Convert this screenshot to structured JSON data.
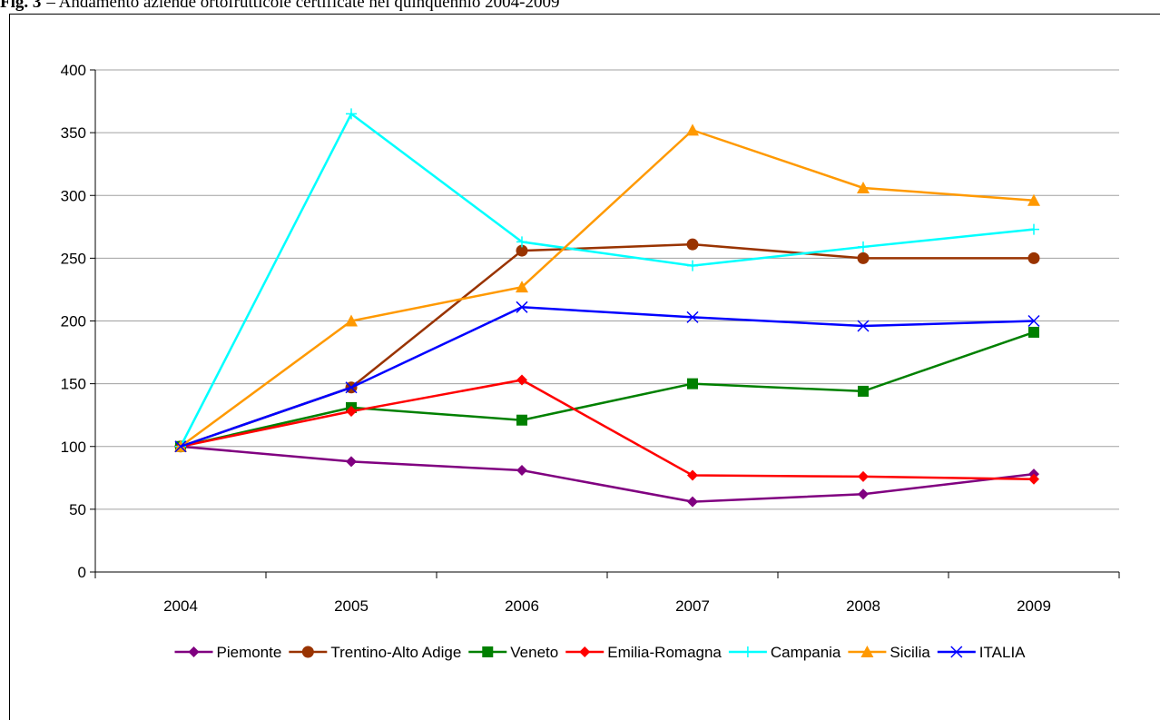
{
  "chart_data": {
    "type": "line",
    "figure_label": "Fig. 3",
    "title": "– Andamento aziende ortofrutticole certificate nel quinquennio 2004-2009",
    "categories": [
      "2004",
      "2005",
      "2006",
      "2007",
      "2008",
      "2009"
    ],
    "series": [
      {
        "name": "Piemonte",
        "color": "#800080",
        "marker": "diamond",
        "values": [
          100,
          88,
          81,
          56,
          62,
          78
        ]
      },
      {
        "name": "Trentino-Alto Adige",
        "color": "#993300",
        "marker": "circle",
        "values": [
          100,
          147,
          256,
          261,
          250,
          250
        ]
      },
      {
        "name": "Veneto",
        "color": "#008000",
        "marker": "square",
        "values": [
          100,
          131,
          121,
          150,
          144,
          191
        ]
      },
      {
        "name": "Emilia-Romagna",
        "color": "#ff0000",
        "marker": "diamond",
        "values": [
          100,
          128,
          153,
          77,
          76,
          74
        ]
      },
      {
        "name": "Campania",
        "color": "#00ffff",
        "marker": "plus",
        "values": [
          100,
          365,
          263,
          244,
          259,
          273
        ]
      },
      {
        "name": "Sicilia",
        "color": "#ff9900",
        "marker": "triangle",
        "values": [
          100,
          200,
          227,
          352,
          306,
          296
        ]
      },
      {
        "name": "ITALIA",
        "color": "#0000ff",
        "marker": "x",
        "values": [
          100,
          147,
          211,
          203,
          196,
          200
        ]
      }
    ],
    "ylim": [
      0,
      400
    ],
    "yticks": [
      0,
      50,
      100,
      150,
      200,
      250,
      300,
      350,
      400
    ],
    "grid": true,
    "legend": "bottom"
  }
}
